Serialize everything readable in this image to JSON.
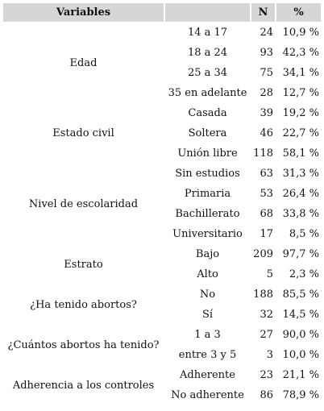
{
  "header": {
    "variables": "Variables",
    "blank": "",
    "n": "N",
    "pct": "%"
  },
  "groups": [
    {
      "label": "Edad",
      "rows": [
        {
          "cat": "14 a 17",
          "n": "24",
          "pct": "10,9 %"
        },
        {
          "cat": "18 a 24",
          "n": "93",
          "pct": "42,3 %"
        },
        {
          "cat": "25 a 34",
          "n": "75",
          "pct": "34,1 %"
        },
        {
          "cat": "35 en adelante",
          "n": "28",
          "pct": "12,7 %"
        }
      ]
    },
    {
      "label": "Estado civil",
      "rows": [
        {
          "cat": "Casada",
          "n": "39",
          "pct": "19,2 %"
        },
        {
          "cat": "Soltera",
          "n": "46",
          "pct": "22,7 %"
        },
        {
          "cat": "Unión libre",
          "n": "118",
          "pct": "58,1 %"
        }
      ]
    },
    {
      "label": "Nivel de escolaridad",
      "rows": [
        {
          "cat": "Sin estudios",
          "n": "63",
          "pct": "31,3 %"
        },
        {
          "cat": "Primaria",
          "n": "53",
          "pct": "26,4 %"
        },
        {
          "cat": "Bachillerato",
          "n": "68",
          "pct": "33,8 %"
        },
        {
          "cat": "Universitario",
          "n": "17",
          "pct": "8,5 %"
        }
      ]
    },
    {
      "label": "Estrato",
      "rows": [
        {
          "cat": "Bajo",
          "n": "209",
          "pct": "97,7 %"
        },
        {
          "cat": "Alto",
          "n": "5",
          "pct": "2,3 %"
        }
      ]
    },
    {
      "label": "¿Ha tenido abortos?",
      "rows": [
        {
          "cat": "No",
          "n": "188",
          "pct": "85,5 %"
        },
        {
          "cat": "Sí",
          "n": "32",
          "pct": "14,5 %"
        }
      ]
    },
    {
      "label": "¿Cuántos abortos ha tenido?",
      "rows": [
        {
          "cat": "1 a 3",
          "n": "27",
          "pct": "90,0 %"
        },
        {
          "cat": "entre 3 y 5",
          "n": "3",
          "pct": "10,0 %"
        }
      ]
    },
    {
      "label": "Adherencia a los controles",
      "rows": [
        {
          "cat": "Adherente",
          "n": "23",
          "pct": "21,1 %"
        },
        {
          "cat": "No adherente",
          "n": "86",
          "pct": "78,9 %"
        }
      ]
    }
  ]
}
